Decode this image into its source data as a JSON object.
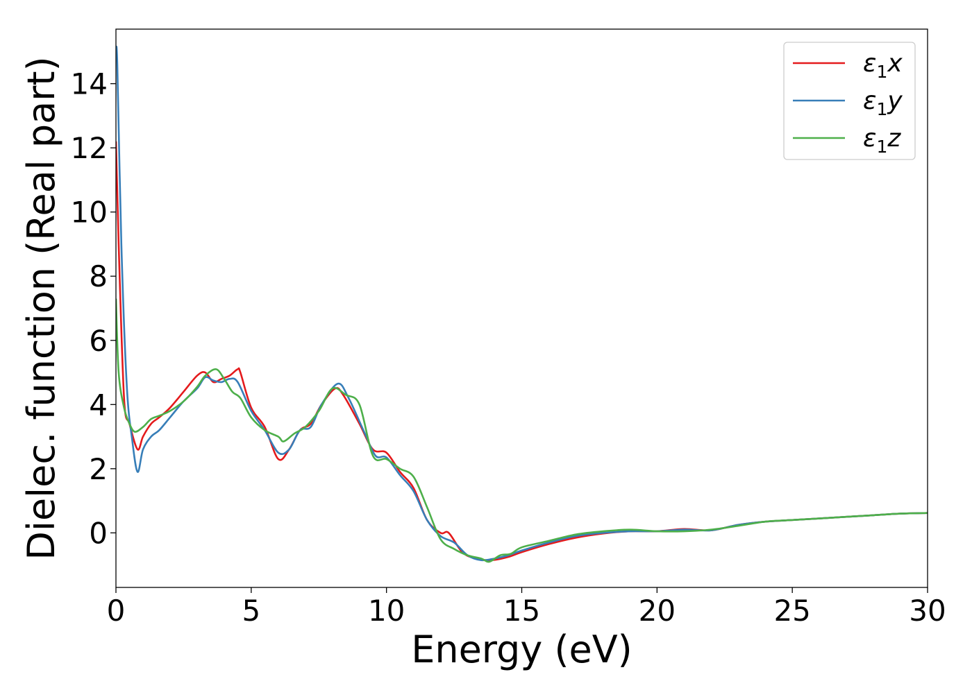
{
  "colors": {
    "x": "#e41a1c",
    "y": "#377eb8",
    "z": "#4daf4a",
    "axis": "#000000",
    "legend_border": "#cccccc"
  },
  "chart_data": {
    "type": "line",
    "title": "",
    "xlabel": "Energy (eV)",
    "ylabel": "Dielec. function (Real part)",
    "xlim": [
      0,
      30
    ],
    "ylim": [
      -1.7,
      15.7
    ],
    "xticks": [
      0,
      5,
      10,
      15,
      20,
      25,
      30
    ],
    "yticks": [
      0,
      2,
      4,
      6,
      8,
      10,
      12,
      14
    ],
    "grid": false,
    "legend_position": "top-right",
    "series": [
      {
        "key": "x",
        "legend": {
          "base": "ε",
          "sub": "1",
          "var": "x"
        },
        "x": [
          0,
          0.1,
          0.3,
          0.5,
          0.8,
          1.0,
          1.3,
          1.6,
          2.0,
          2.5,
          3.0,
          3.3,
          3.6,
          3.9,
          4.2,
          4.5,
          4.6,
          5.0,
          5.5,
          6.0,
          6.4,
          6.8,
          7.2,
          7.6,
          8.1,
          8.4,
          9.0,
          9.5,
          10.0,
          10.5,
          11.0,
          11.5,
          12.0,
          12.3,
          12.8,
          13.3,
          13.9,
          14.5,
          15.0,
          16.0,
          17.0,
          18.0,
          19.0,
          20.0,
          21.0,
          22.0,
          23.0,
          24.0,
          25.0,
          26.0,
          27.0,
          28.0,
          29.0,
          30.0
        ],
        "values": [
          12.2,
          9.0,
          4.2,
          3.4,
          2.6,
          3.0,
          3.4,
          3.6,
          3.9,
          4.4,
          4.9,
          5.0,
          4.7,
          4.8,
          4.9,
          5.1,
          5.0,
          3.9,
          3.3,
          2.3,
          2.6,
          3.2,
          3.4,
          4.0,
          4.5,
          4.3,
          3.4,
          2.6,
          2.5,
          1.9,
          1.4,
          0.4,
          0.0,
          0.0,
          -0.6,
          -0.8,
          -0.85,
          -0.75,
          -0.6,
          -0.35,
          -0.15,
          -0.02,
          0.05,
          0.05,
          0.12,
          0.08,
          0.25,
          0.35,
          0.4,
          0.45,
          0.5,
          0.55,
          0.6,
          0.62
        ]
      },
      {
        "key": "y",
        "legend": {
          "base": "ε",
          "sub": "1",
          "var": "y"
        },
        "x": [
          0,
          0.05,
          0.2,
          0.4,
          0.6,
          0.8,
          1.0,
          1.3,
          1.6,
          2.0,
          2.5,
          3.0,
          3.3,
          3.6,
          3.9,
          4.2,
          4.5,
          5.0,
          5.5,
          6.0,
          6.4,
          6.8,
          7.2,
          7.6,
          8.2,
          8.6,
          9.2,
          9.6,
          10.0,
          10.5,
          11.0,
          11.5,
          12.0,
          12.5,
          13.0,
          13.5,
          14.0,
          14.5,
          15.0,
          16.0,
          17.0,
          18.0,
          19.0,
          20.0,
          21.0,
          22.0,
          23.0,
          24.0,
          25.0,
          26.0,
          27.0,
          28.0,
          29.0,
          30.0
        ],
        "values": [
          15.0,
          14.6,
          9.0,
          4.6,
          2.9,
          1.9,
          2.6,
          3.0,
          3.2,
          3.6,
          4.1,
          4.5,
          4.85,
          4.75,
          4.7,
          4.8,
          4.7,
          3.8,
          3.2,
          2.5,
          2.6,
          3.2,
          3.3,
          4.0,
          4.65,
          4.2,
          3.1,
          2.4,
          2.35,
          1.8,
          1.3,
          0.4,
          -0.1,
          -0.3,
          -0.7,
          -0.85,
          -0.8,
          -0.7,
          -0.55,
          -0.3,
          -0.1,
          0.0,
          0.05,
          0.05,
          0.1,
          0.08,
          0.25,
          0.35,
          0.4,
          0.45,
          0.5,
          0.55,
          0.6,
          0.62
        ]
      },
      {
        "key": "z",
        "legend": {
          "base": "ε",
          "sub": "1",
          "var": "z"
        },
        "x": [
          0,
          0.1,
          0.3,
          0.5,
          0.7,
          1.0,
          1.3,
          1.6,
          2.0,
          2.5,
          3.0,
          3.3,
          3.7,
          4.0,
          4.3,
          4.6,
          5.0,
          5.5,
          6.0,
          6.2,
          6.6,
          7.0,
          7.5,
          8.0,
          8.5,
          9.0,
          9.5,
          10.0,
          10.5,
          11.0,
          11.5,
          12.0,
          12.5,
          13.0,
          13.5,
          13.8,
          14.2,
          14.6,
          15.0,
          16.0,
          17.0,
          18.0,
          19.0,
          20.0,
          21.0,
          22.0,
          23.0,
          24.0,
          25.0,
          26.0,
          27.0,
          28.0,
          29.0,
          30.0
        ],
        "values": [
          7.3,
          5.0,
          3.9,
          3.4,
          3.15,
          3.3,
          3.55,
          3.65,
          3.8,
          4.1,
          4.55,
          4.9,
          5.1,
          4.8,
          4.4,
          4.2,
          3.6,
          3.2,
          3.0,
          2.85,
          3.1,
          3.3,
          3.8,
          4.5,
          4.3,
          4.0,
          2.4,
          2.3,
          2.0,
          1.75,
          0.8,
          -0.2,
          -0.5,
          -0.7,
          -0.8,
          -0.9,
          -0.7,
          -0.65,
          -0.45,
          -0.25,
          -0.05,
          0.05,
          0.1,
          0.05,
          0.05,
          0.1,
          0.22,
          0.35,
          0.4,
          0.45,
          0.5,
          0.55,
          0.6,
          0.62
        ]
      }
    ]
  }
}
